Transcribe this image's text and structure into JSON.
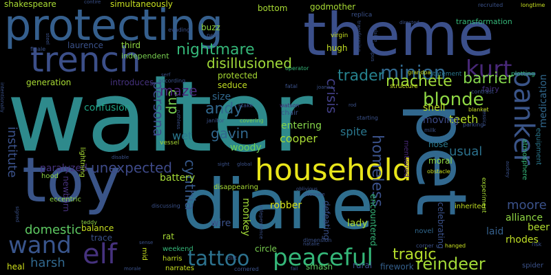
{
  "words": [
    {
      "text": "walter",
      "color": "#2e8a8c",
      "weight": 1.0
    },
    {
      "text": "theme",
      "color": "#3b4f8a",
      "weight": 0.62
    },
    {
      "text": "diane",
      "color": "#2f6e8e",
      "weight": 0.62
    },
    {
      "text": "toy",
      "color": "#3a5488",
      "weight": 0.5
    },
    {
      "text": "pet",
      "color": "#31688e",
      "weight": 0.62
    },
    {
      "text": "protecting",
      "color": "#355f8d",
      "weight": 0.42
    },
    {
      "text": "trench",
      "color": "#3c4f89",
      "weight": 0.35
    },
    {
      "text": "household",
      "color": "#e8e51a",
      "weight": 0.3
    },
    {
      "text": "banker",
      "color": "#3a5488",
      "weight": 0.3
    },
    {
      "text": "peaceful",
      "color": "#35b779",
      "weight": 0.22
    },
    {
      "text": "elf",
      "color": "#46327e",
      "weight": 0.25
    },
    {
      "text": "wand",
      "color": "#39558c",
      "weight": 0.22
    },
    {
      "text": "tattoo",
      "color": "#2c728e",
      "weight": 0.2
    },
    {
      "text": "minion",
      "color": "#31688e",
      "weight": 0.18
    },
    {
      "text": "kurt",
      "color": "#482878",
      "weight": 0.18
    },
    {
      "text": "blonde",
      "color": "#8fd744",
      "weight": 0.16
    },
    {
      "text": "reindeer",
      "color": "#a2da37",
      "weight": 0.15
    },
    {
      "text": "nightmare",
      "color": "#35b779",
      "weight": 0.14
    },
    {
      "text": "disillusioned",
      "color": "#a0da39",
      "weight": 0.14
    },
    {
      "text": "trader",
      "color": "#26828e",
      "weight": 0.14
    },
    {
      "text": "machete",
      "color": "#9fda3a",
      "weight": 0.13
    },
    {
      "text": "barrier",
      "color": "#83d34b",
      "weight": 0.13
    },
    {
      "text": "persona",
      "color": "#3d4d8a",
      "weight": 0.13
    },
    {
      "text": "homeless",
      "color": "#3b528b",
      "weight": 0.13
    },
    {
      "text": "crisis",
      "color": "#423f85",
      "weight": 0.12
    },
    {
      "text": "andy",
      "color": "#31688e",
      "weight": 0.13
    },
    {
      "text": "gavin",
      "color": "#31688e",
      "weight": 0.12
    },
    {
      "text": "cup",
      "color": "#7ad151",
      "weight": 0.12
    },
    {
      "text": "maze",
      "color": "#482878",
      "weight": 0.12
    },
    {
      "text": "unexpected",
      "color": "#3e4a89",
      "weight": 0.13
    },
    {
      "text": "cynthia",
      "color": "#375a8c",
      "weight": 0.12
    },
    {
      "text": "institute",
      "color": "#3b528b",
      "weight": 0.11
    },
    {
      "text": "domestic",
      "color": "#5ec962",
      "weight": 0.11
    },
    {
      "text": "harsh",
      "color": "#31688e",
      "weight": 0.11
    },
    {
      "text": "moore",
      "color": "#3b528b",
      "weight": 0.11
    },
    {
      "text": "tragic",
      "color": "#b5de2b",
      "weight": 0.12
    },
    {
      "text": "usual",
      "color": "#2c728e",
      "weight": 0.1
    },
    {
      "text": "cooper",
      "color": "#a8db34",
      "weight": 0.1
    },
    {
      "text": "spite",
      "color": "#2a778e",
      "weight": 0.1
    },
    {
      "text": "entering",
      "color": "#86d549",
      "weight": 0.1
    },
    {
      "text": "wet",
      "color": "#2a788e",
      "weight": 0.1
    },
    {
      "text": "shell",
      "color": "#bddf26",
      "weight": 0.1
    },
    {
      "text": "teeth",
      "color": "#b8de29",
      "weight": 0.1
    },
    {
      "text": "moving",
      "color": "#3e4c8a",
      "weight": 0.1
    },
    {
      "text": "confusion",
      "color": "#20a486",
      "weight": 0.1
    },
    {
      "text": "size",
      "color": "#31688e",
      "weight": 0.09
    },
    {
      "text": "woody",
      "color": "#6ece58",
      "weight": 0.09
    },
    {
      "text": "medication",
      "color": "#31688e",
      "weight": 0.09
    },
    {
      "text": "paralyzed",
      "color": "#46327e",
      "weight": 0.09
    },
    {
      "text": "battery",
      "color": "#a5db36",
      "weight": 0.09
    },
    {
      "text": "monkey",
      "color": "#a2da37",
      "weight": 0.09
    },
    {
      "text": "robber",
      "color": "#d8e219",
      "weight": 0.09
    },
    {
      "text": "lady",
      "color": "#addc30",
      "weight": 0.09
    },
    {
      "text": "wire",
      "color": "#3b528b",
      "weight": 0.09
    },
    {
      "text": "alliance",
      "color": "#90d743",
      "weight": 0.09
    },
    {
      "text": "rhodes",
      "color": "#c0df25",
      "weight": 0.09
    },
    {
      "text": "beer",
      "color": "#b2dd2d",
      "weight": 0.09
    },
    {
      "text": "laid",
      "color": "#35608d",
      "weight": 0.09
    },
    {
      "text": "encountered",
      "color": "#35b779",
      "weight": 0.08
    },
    {
      "text": "defeating",
      "color": "#3b528b",
      "weight": 0.08
    },
    {
      "text": "celebrating",
      "color": "#3b528b",
      "weight": 0.08
    },
    {
      "text": "smash",
      "color": "#5ec962",
      "weight": 0.08
    },
    {
      "text": "rural",
      "color": "#3d4e8a",
      "weight": 0.08
    },
    {
      "text": "firework",
      "color": "#35608d",
      "weight": 0.08
    },
    {
      "text": "heal",
      "color": "#d0e11c",
      "weight": 0.08
    },
    {
      "text": "trace",
      "color": "#3b528b",
      "weight": 0.08
    },
    {
      "text": "balance",
      "color": "#c8e020",
      "weight": 0.08
    },
    {
      "text": "newborn",
      "color": "#46327e",
      "weight": 0.08
    },
    {
      "text": "generation",
      "color": "#a8db34",
      "weight": 0.07
    },
    {
      "text": "protected",
      "color": "#a8db34",
      "weight": 0.07
    },
    {
      "text": "seduce",
      "color": "#c2df23",
      "weight": 0.07
    },
    {
      "text": "introduces",
      "color": "#46327e",
      "weight": 0.07
    },
    {
      "text": "laurence",
      "color": "#3b528b",
      "weight": 0.07
    },
    {
      "text": "third",
      "color": "#90d743",
      "weight": 0.07
    },
    {
      "text": "independent",
      "color": "#7ad151",
      "weight": 0.07
    },
    {
      "text": "buzz",
      "color": "#90d743",
      "weight": 0.07
    },
    {
      "text": "pete",
      "color": "#3b528b",
      "weight": 0.04
    },
    {
      "text": "hugh",
      "color": "#c2df23",
      "weight": 0.07
    },
    {
      "text": "shakespeare",
      "color": "#a8db34",
      "weight": 0.07
    },
    {
      "text": "simultaneously",
      "color": "#c8e020",
      "weight": 0.07
    },
    {
      "text": "bottom",
      "color": "#a8db34",
      "weight": 0.07
    },
    {
      "text": "godmother",
      "color": "#a8db34",
      "weight": 0.07
    },
    {
      "text": "transformation",
      "color": "#35b779",
      "weight": 0.07
    },
    {
      "text": "replica",
      "color": "#3b528b",
      "weight": 0.05
    },
    {
      "text": "statement",
      "color": "#2a788e",
      "weight": 0.05
    },
    {
      "text": "plotting",
      "color": "#35b779",
      "weight": 0.05
    },
    {
      "text": "structure",
      "color": "#c8e020",
      "weight": 0.05
    },
    {
      "text": "mentioned",
      "color": "#482878",
      "weight": 0.05
    },
    {
      "text": "nose",
      "color": "#2a788e",
      "weight": 0.06
    },
    {
      "text": "moral",
      "color": "#90d743",
      "weight": 0.06
    },
    {
      "text": "fairy",
      "color": "#46327e",
      "weight": 0.06
    },
    {
      "text": "chair",
      "color": "#3b528b",
      "weight": 0.05
    },
    {
      "text": "hood",
      "color": "#90d743",
      "weight": 0.05
    },
    {
      "text": "lightning",
      "color": "#a8db34",
      "weight": 0.05
    },
    {
      "text": "eccentric",
      "color": "#90d743",
      "weight": 0.05
    },
    {
      "text": "disappearing",
      "color": "#a8db34",
      "weight": 0.05
    },
    {
      "text": "teddy",
      "color": "#90d743",
      "weight": 0.04
    },
    {
      "text": "rat",
      "color": "#a8db34",
      "weight": 0.06
    },
    {
      "text": "weekend",
      "color": "#35b779",
      "weight": 0.05
    },
    {
      "text": "harris",
      "color": "#c2df23",
      "weight": 0.05
    },
    {
      "text": "circle",
      "color": "#7ad151",
      "weight": 0.06
    },
    {
      "text": "mid",
      "color": "#c8e020",
      "weight": 0.05
    },
    {
      "text": "narrates",
      "color": "#c8e020",
      "weight": 0.05
    },
    {
      "text": "dirt",
      "color": "#3b528b",
      "weight": 0.04
    },
    {
      "text": "cornered",
      "color": "#3b528b",
      "weight": 0.04
    },
    {
      "text": "corner",
      "color": "#3b528b",
      "weight": 0.04
    },
    {
      "text": "hanged",
      "color": "#c8e020",
      "weight": 0.04
    },
    {
      "text": "novel",
      "color": "#31688e",
      "weight": 0.05
    },
    {
      "text": "inherited",
      "color": "#c2df23",
      "weight": 0.05
    },
    {
      "text": "spider",
      "color": "#3b528b",
      "weight": 0.05
    },
    {
      "text": "risk",
      "color": "#3b528b",
      "weight": 0.04
    },
    {
      "text": "atmosphere",
      "color": "#35b779",
      "weight": 0.05
    },
    {
      "text": "equipment",
      "color": "#2a788e",
      "weight": 0.05
    },
    {
      "text": "obstacle",
      "color": "#c8e020",
      "weight": 0.04
    },
    {
      "text": "experiment",
      "color": "#a8db34",
      "weight": 0.05
    },
    {
      "text": "virgin",
      "color": "#c8e020",
      "weight": 0.04
    },
    {
      "text": "grandpa",
      "color": "#c8e020",
      "weight": 0.04
    },
    {
      "text": "contrast",
      "color": "#3b528b",
      "weight": 0.04
    },
    {
      "text": "blanket",
      "color": "#c8e020",
      "weight": 0.04
    },
    {
      "text": "milk",
      "color": "#3b528b",
      "weight": 0.04
    },
    {
      "text": "parking",
      "color": "#3b528b",
      "weight": 0.04
    },
    {
      "text": "watson",
      "color": "#482878",
      "weight": 0.04
    },
    {
      "text": "stake",
      "color": "#3b528b",
      "weight": 0.04
    },
    {
      "text": "janitor",
      "color": "#3b528b",
      "weight": 0.04
    },
    {
      "text": "covering",
      "color": "#7ad151",
      "weight": 0.04
    },
    {
      "text": "fatal",
      "color": "#3b528b",
      "weight": 0.04
    },
    {
      "text": "operator",
      "color": "#35b779",
      "weight": 0.04
    },
    {
      "text": "joanna",
      "color": "#3b528b",
      "weight": 0.03
    },
    {
      "text": "rod",
      "color": "#3b528b",
      "weight": 0.03
    },
    {
      "text": "starting",
      "color": "#3b528b",
      "weight": 0.04
    },
    {
      "text": "vessel",
      "color": "#a8db34",
      "weight": 0.04
    },
    {
      "text": "disable",
      "color": "#3b528b",
      "weight": 0.03
    },
    {
      "text": "according",
      "color": "#3b528b",
      "weight": 0.04
    },
    {
      "text": "ruthless",
      "color": "#3b528b",
      "weight": 0.03
    },
    {
      "text": "serf",
      "color": "#3b528b",
      "weight": 0.03
    },
    {
      "text": "evading",
      "color": "#3b528b",
      "weight": 0.03
    },
    {
      "text": "steel",
      "color": "#3b528b",
      "weight": 0.03
    },
    {
      "text": "finale",
      "color": "#3b528b",
      "weight": 0.03
    },
    {
      "text": "recruited",
      "color": "#3b528b",
      "weight": 0.03
    },
    {
      "text": "longtime",
      "color": "#c8e020",
      "weight": 0.03
    },
    {
      "text": "directed",
      "color": "#3b528b",
      "weight": 0.03
    },
    {
      "text": "transforming",
      "color": "#3b528b",
      "weight": 0.03
    },
    {
      "text": "campus",
      "color": "#3b528b",
      "weight": 0.03
    },
    {
      "text": "alternate",
      "color": "#3b528b",
      "weight": 0.03
    },
    {
      "text": "dimension",
      "color": "#3b528b",
      "weight": 0.03
    },
    {
      "text": "natalie",
      "color": "#3b528b",
      "weight": 0.03
    },
    {
      "text": "oblivious",
      "color": "#3b528b",
      "weight": 0.03
    },
    {
      "text": "discussing",
      "color": "#3b528b",
      "weight": 0.03
    },
    {
      "text": "signed",
      "color": "#3b528b",
      "weight": 0.03
    },
    {
      "text": "sense",
      "color": "#3b528b",
      "weight": 0.03
    },
    {
      "text": "morale",
      "color": "#3b528b",
      "weight": 0.03
    },
    {
      "text": "global",
      "color": "#3b528b",
      "weight": 0.03
    },
    {
      "text": "sight",
      "color": "#3b528b",
      "weight": 0.03
    },
    {
      "text": "independence",
      "color": "#3b528b",
      "weight": 0.03
    },
    {
      "text": "fail",
      "color": "#3b528b",
      "weight": 0.03
    },
    {
      "text": "jessica",
      "color": "#3b528b",
      "weight": 0.03
    },
    {
      "text": "audrey",
      "color": "#3b528b",
      "weight": 0.03
    },
    {
      "text": "intentionally",
      "color": "#3b528b",
      "weight": 0.03
    },
    {
      "text": "elaine",
      "color": "#3b528b",
      "weight": 0.03
    },
    {
      "text": "contire",
      "color": "#3b528b",
      "weight": 0.02
    }
  ]
}
